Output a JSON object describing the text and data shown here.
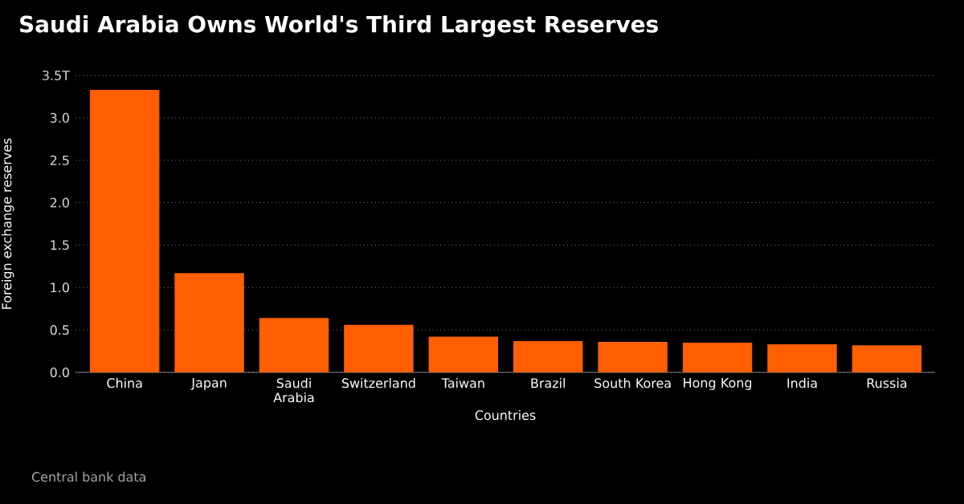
{
  "chart_data": {
    "type": "bar",
    "title": "Saudi Arabia Owns World's Third Largest Reserves",
    "categories": [
      "China",
      "Japan",
      "Saudi Arabia",
      "Switzerland",
      "Taiwan",
      "Brazil",
      "South Korea",
      "Hong Kong",
      "India",
      "Russia"
    ],
    "values": [
      3.33,
      1.17,
      0.64,
      0.56,
      0.42,
      0.37,
      0.36,
      0.35,
      0.33,
      0.32
    ],
    "color": "#ff5f00",
    "xlabel": "Countries",
    "ylabel": "Foreign exchange reserves",
    "ylim": [
      0,
      3.5
    ],
    "yticks": [
      {
        "value": 0,
        "label": "0.0"
      },
      0.5,
      {
        "value": 1,
        "label": "1.0"
      },
      1.5,
      {
        "value": 2,
        "label": "2.0"
      },
      2.5,
      {
        "value": 3,
        "label": "3.0"
      },
      {
        "value": 3.5,
        "label": "3.5T"
      }
    ],
    "grid": "y",
    "annotations": [
      "Central bank data"
    ]
  }
}
